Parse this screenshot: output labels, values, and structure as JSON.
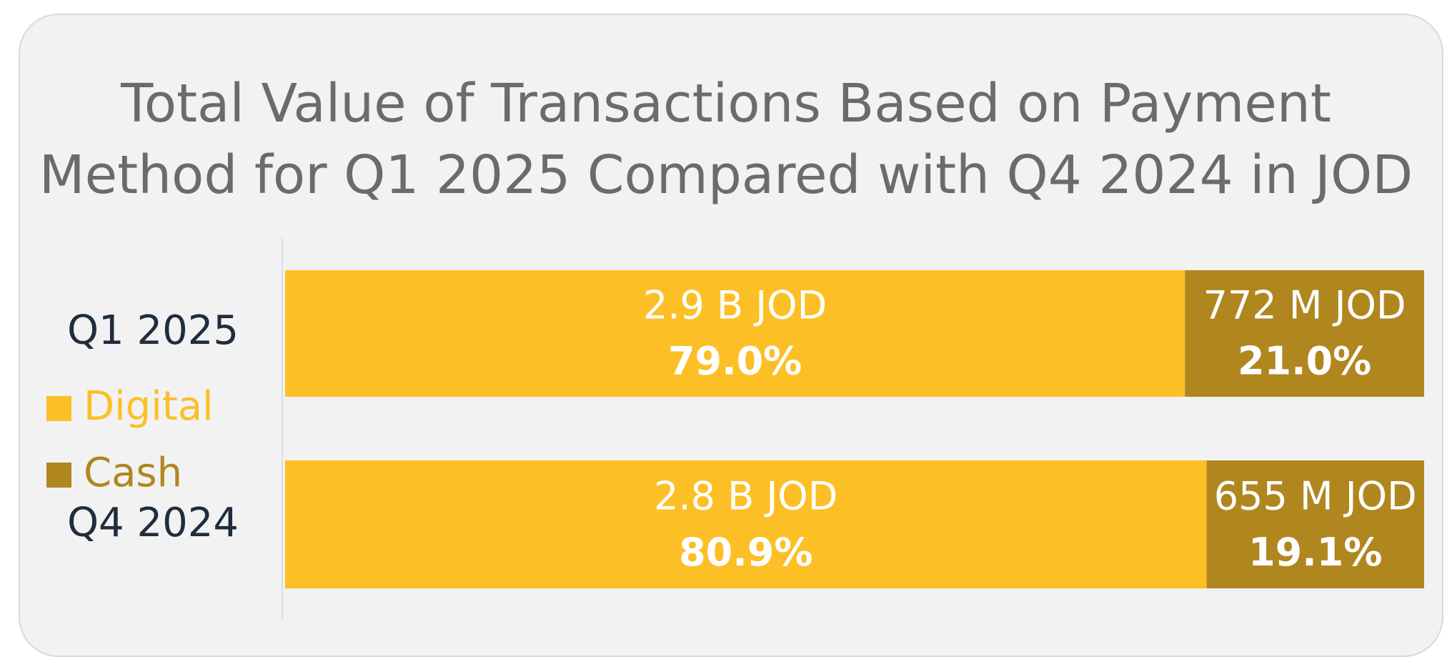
{
  "chart_data": {
    "type": "stacked_bar_horizontal",
    "title": "Total Value of Transactions Based on Payment Method for Q1 2025 Compared with Q4 2024 in JOD",
    "categories": [
      "Q1 2025",
      "Q4 2024"
    ],
    "xlim": [
      0,
      100
    ],
    "legend": "left",
    "series": [
      {
        "name": "Digital",
        "color": "#fcbf26",
        "values": [
          79.0,
          80.9
        ],
        "value_labels": [
          "79.0%",
          "80.9%"
        ],
        "amounts": [
          2900000000,
          2800000000
        ],
        "amount_labels": [
          "2.9 B JOD",
          "2.8 B JOD"
        ]
      },
      {
        "name": "Cash",
        "color": "#b0861f",
        "values": [
          21.0,
          19.1
        ],
        "value_labels": [
          "21.0%",
          "19.1%"
        ],
        "amounts": [
          772000000,
          655000000
        ],
        "amount_labels": [
          "772 M JOD",
          "655 M JOD"
        ]
      }
    ]
  }
}
